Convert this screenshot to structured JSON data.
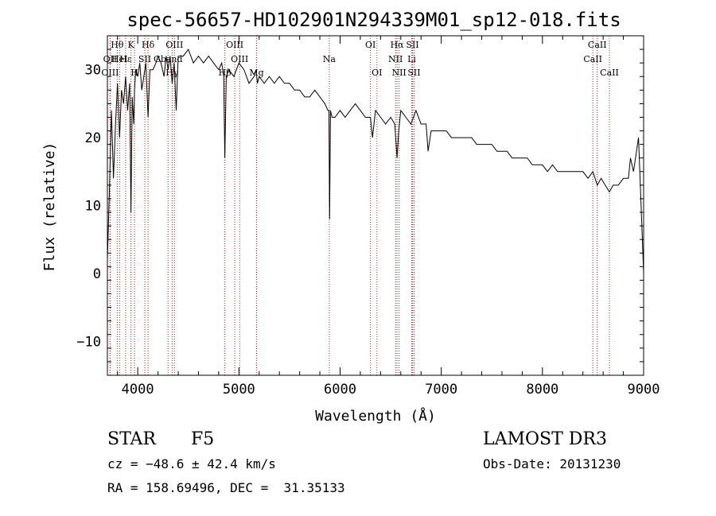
{
  "chart_data": {
    "type": "line",
    "title": "spec-56657-HD102901N294339M01_sp12-018.fits",
    "xlabel": "Wavelength (Å)",
    "ylabel": "Flux (relative)",
    "xlim": [
      3700,
      9000
    ],
    "ylim": [
      -15,
      35
    ],
    "xticks": [
      4000,
      5000,
      6000,
      7000,
      8000,
      9000
    ],
    "yticks": [
      -10,
      0,
      10,
      20,
      30
    ],
    "xtick_labels": [
      "4000",
      "5000",
      "6000",
      "7000",
      "8000",
      "9000"
    ],
    "ytick_labels": [
      "−10",
      "0",
      "10",
      "20",
      "30"
    ],
    "series": [
      {
        "name": "flux",
        "x": [
          3700,
          3720,
          3740,
          3760,
          3780,
          3800,
          3820,
          3840,
          3860,
          3880,
          3900,
          3920,
          3933,
          3945,
          3960,
          3968,
          3980,
          4000,
          4020,
          4040,
          4060,
          4080,
          4102,
          4120,
          4150,
          4180,
          4200,
          4230,
          4260,
          4280,
          4300,
          4320,
          4340,
          4360,
          4380,
          4400,
          4450,
          4500,
          4550,
          4600,
          4650,
          4700,
          4750,
          4800,
          4830,
          4850,
          4861,
          4875,
          4900,
          4950,
          5000,
          5050,
          5100,
          5150,
          5170,
          5183,
          5200,
          5250,
          5300,
          5350,
          5400,
          5450,
          5500,
          5550,
          5600,
          5650,
          5700,
          5750,
          5800,
          5850,
          5880,
          5890,
          5896,
          5905,
          5920,
          5950,
          6000,
          6050,
          6100,
          6150,
          6200,
          6250,
          6300,
          6320,
          6350,
          6400,
          6450,
          6500,
          6540,
          6563,
          6580,
          6600,
          6650,
          6700,
          6750,
          6800,
          6850,
          6870,
          6900,
          6950,
          7000,
          7050,
          7100,
          7150,
          7200,
          7250,
          7300,
          7350,
          7400,
          7450,
          7500,
          7550,
          7600,
          7650,
          7700,
          7750,
          7800,
          7850,
          7900,
          7950,
          8000,
          8050,
          8100,
          8150,
          8200,
          8250,
          8300,
          8350,
          8400,
          8450,
          8498,
          8542,
          8580,
          8620,
          8662,
          8700,
          8750,
          8800,
          8850,
          8870,
          8900,
          8930,
          8950,
          8970,
          8985,
          8995,
          9000
        ],
        "y": [
          2,
          12,
          24,
          14,
          22,
          28,
          20,
          27,
          25,
          29,
          24,
          28,
          9,
          26,
          22,
          27,
          30,
          29,
          31,
          27,
          29,
          31,
          23,
          30,
          30,
          31,
          32,
          31,
          29,
          32,
          30,
          32,
          28,
          31,
          24,
          32,
          32,
          33,
          31,
          32,
          31,
          32,
          31,
          30,
          31,
          29,
          17,
          29,
          30,
          29,
          31,
          30,
          28,
          29,
          30,
          28,
          29,
          28,
          29,
          28,
          29,
          28,
          28,
          27,
          27,
          26,
          26,
          27,
          26,
          25,
          24,
          24,
          8,
          24,
          23,
          23,
          24,
          23,
          24,
          25,
          24,
          23,
          23,
          20,
          24,
          23,
          22,
          23,
          22,
          17,
          21,
          24,
          23,
          22,
          24,
          22,
          22,
          18,
          21,
          21,
          21,
          21,
          20,
          20,
          20,
          20,
          20,
          19,
          19,
          19,
          19,
          18,
          18,
          18,
          17,
          17,
          17,
          17,
          16,
          16,
          16,
          15,
          16,
          15,
          15,
          15,
          15,
          15,
          15,
          14,
          15,
          13,
          14,
          13,
          12,
          13,
          13,
          14,
          14,
          17,
          15,
          18,
          20,
          12,
          6,
          2,
          0
        ]
      }
    ],
    "spectral_lines": [
      {
        "label": "Hθ",
        "x": 3797,
        "row": 0
      },
      {
        "label": "OII",
        "x": 3727,
        "row": 1
      },
      {
        "label": "OIII",
        "x": 3727,
        "row": 2
      },
      {
        "label": "HeI",
        "x": 3820,
        "row": 1
      },
      {
        "label": "Hε",
        "x": 3880,
        "row": 1
      },
      {
        "label": "K",
        "x": 3933,
        "row": 0
      },
      {
        "label": "H",
        "x": 3968,
        "row": 2
      },
      {
        "label": "Hδ",
        "x": 4102,
        "row": 0
      },
      {
        "label": "SII",
        "x": 4070,
        "row": 1
      },
      {
        "label": "OIII",
        "x": 4363,
        "row": 0
      },
      {
        "label": "Gband",
        "x": 4300,
        "row": 1
      },
      {
        "label": "Hγ",
        "x": 4340,
        "row": 2
      },
      {
        "label": "OIII",
        "x": 4959,
        "row": 0
      },
      {
        "label": "OIII",
        "x": 5007,
        "row": 1
      },
      {
        "label": "Hβ",
        "x": 4861,
        "row": 2
      },
      {
        "label": "Mg",
        "x": 5175,
        "row": 2
      },
      {
        "label": "Na",
        "x": 5893,
        "row": 1
      },
      {
        "label": "OI",
        "x": 6300,
        "row": 0
      },
      {
        "label": "OI",
        "x": 6364,
        "row": 2
      },
      {
        "label": "Hα",
        "x": 6563,
        "row": 0
      },
      {
        "label": "SII",
        "x": 6716,
        "row": 0
      },
      {
        "label": "NII",
        "x": 6548,
        "row": 1
      },
      {
        "label": "Li",
        "x": 6708,
        "row": 1
      },
      {
        "label": "NII",
        "x": 6583,
        "row": 2
      },
      {
        "label": "SII",
        "x": 6731,
        "row": 2
      },
      {
        "label": "CaII",
        "x": 8542,
        "row": 0
      },
      {
        "label": "CaII",
        "x": 8498,
        "row": 1
      },
      {
        "label": "CaII",
        "x": 8662,
        "row": 2
      }
    ]
  },
  "footer": {
    "object_class": "STAR",
    "subclass": "F5",
    "survey": "LAMOST DR3",
    "cz": "cz = −48.6 ± 42.4 km/s",
    "obs_date": "Obs-Date: 20131230",
    "coords": "RA = 158.69496, DEC =  31.35133"
  }
}
